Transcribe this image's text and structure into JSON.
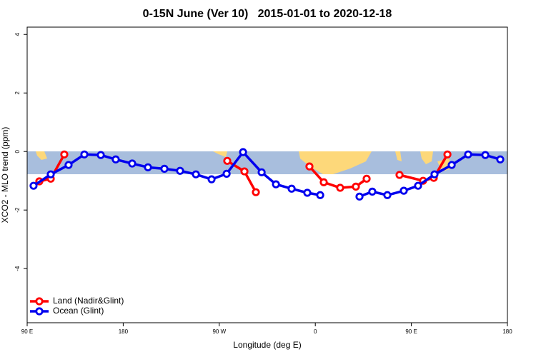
{
  "chart_data": {
    "type": "line",
    "title": "0-15N June (Ver 10)   2015-01-01 to 2020-12-18",
    "xlabel": "Longitude (deg E)",
    "ylabel": "XCO2 - MLO trend (ppm)",
    "xlim": [
      90,
      540
    ],
    "ylim": [
      -5.85,
      4.25
    ],
    "xticks": [
      {
        "value": 90,
        "label": "90 E"
      },
      180,
      {
        "value": 270,
        "label": "90 W"
      },
      {
        "value": 360,
        "label": "0"
      },
      {
        "value": 450,
        "label": "90 E"
      },
      {
        "value": 540,
        "label": "180"
      }
    ],
    "yticks": [
      -4,
      -2,
      0,
      2,
      4
    ],
    "legend": "bottom-left",
    "series": [
      {
        "name": "Land (Nadir&Glint)",
        "color": "#ff0000",
        "x": [
          101.4,
          112.1,
          124.8,
          200,
          277.5,
          293.6,
          304.3,
          330,
          354.5,
          367.9,
          383.3,
          398.0,
          408.1,
          430,
          438.9,
          461.0,
          471.0,
          483.8
        ],
        "values": [
          -1.02,
          -0.93,
          -0.1,
          null,
          -0.32,
          -0.68,
          -1.39,
          null,
          -0.51,
          -1.05,
          -1.24,
          -1.2,
          -0.93,
          null,
          -0.8,
          -1.0,
          -0.9,
          -0.1
        ]
      },
      {
        "name": "Ocean (Glint)",
        "color": "#0000ee",
        "x": [
          96.0,
          112.1,
          128.8,
          143.6,
          159.0,
          173.0,
          188.4,
          203.2,
          218.6,
          233.3,
          248.1,
          262.8,
          276.9,
          292.3,
          309.7,
          323.1,
          337.8,
          352.5,
          364.6,
          379.3,
          394.1,
          401.4,
          413.4,
          427.5,
          442.9,
          456.3,
          471.7,
          487.8,
          503.2,
          519.3,
          533.3
        ],
        "values": [
          -1.17,
          -0.78,
          -0.46,
          -0.1,
          -0.12,
          -0.27,
          -0.41,
          -0.54,
          -0.59,
          -0.66,
          -0.78,
          -0.95,
          -0.76,
          -0.02,
          -0.71,
          -1.12,
          -1.27,
          -1.41,
          -1.49,
          null,
          null,
          -1.54,
          -1.37,
          -1.49,
          -1.34,
          -1.17,
          -0.78,
          -0.46,
          -0.1,
          -0.12,
          -0.27
        ]
      }
    ]
  }
}
